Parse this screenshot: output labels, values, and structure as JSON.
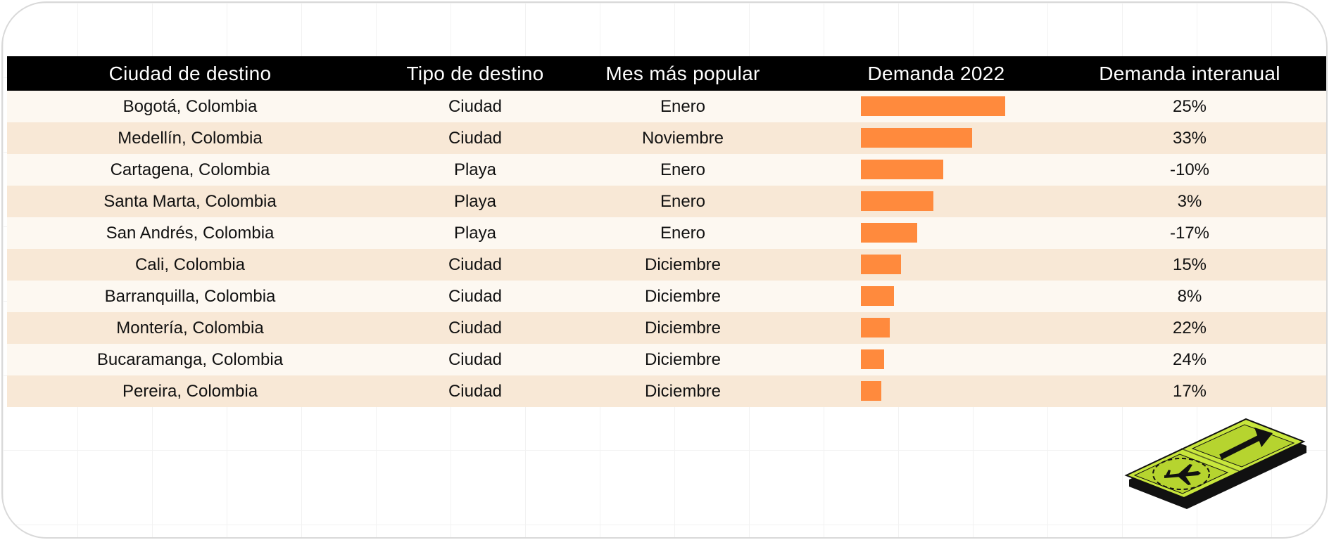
{
  "table": {
    "headers": {
      "city": "Ciudad de destino",
      "type": "Tipo de destino",
      "month": "Mes más popular",
      "demand": "Demanda 2022",
      "yoy": "Demanda interanual"
    },
    "rows": [
      {
        "city": "Bogotá, Colombia",
        "type": "Ciudad",
        "month": "Enero",
        "yoy": "25%"
      },
      {
        "city": "Medellín, Colombia",
        "type": "Ciudad",
        "month": "Noviembre",
        "yoy": "33%"
      },
      {
        "city": "Cartagena, Colombia",
        "type": "Playa",
        "month": "Enero",
        "yoy": "-10%"
      },
      {
        "city": "Santa Marta, Colombia",
        "type": "Playa",
        "month": "Enero",
        "yoy": "3%"
      },
      {
        "city": "San Andrés, Colombia",
        "type": "Playa",
        "month": "Enero",
        "yoy": "-17%"
      },
      {
        "city": "Cali, Colombia",
        "type": "Ciudad",
        "month": "Diciembre",
        "yoy": "15%"
      },
      {
        "city": "Barranquilla, Colombia",
        "type": "Ciudad",
        "month": "Diciembre",
        "yoy": "8%"
      },
      {
        "city": "Montería, Colombia",
        "type": "Ciudad",
        "month": "Diciembre",
        "yoy": "22%"
      },
      {
        "city": "Bucaramanga, Colombia",
        "type": "Ciudad",
        "month": "Diciembre",
        "yoy": "24%"
      },
      {
        "city": "Pereira, Colombia",
        "type": "Ciudad",
        "month": "Diciembre",
        "yoy": "17%"
      }
    ]
  },
  "chart_data": {
    "type": "bar",
    "orientation": "horizontal",
    "categories": [
      "Bogotá, Colombia",
      "Medellín, Colombia",
      "Cartagena, Colombia",
      "Santa Marta, Colombia",
      "San Andrés, Colombia",
      "Cali, Colombia",
      "Barranquilla, Colombia",
      "Montería, Colombia",
      "Bucaramanga, Colombia",
      "Pereira, Colombia"
    ],
    "values": [
      100,
      77,
      57,
      50,
      39,
      28,
      23,
      20,
      16,
      14
    ],
    "value_unit": "relative demand (Bogotá = 100)",
    "title": "Demanda 2022",
    "axis": "none",
    "grid": false,
    "legend": "none"
  },
  "colors": {
    "header_bg": "#000000",
    "header_text": "#ffffff",
    "row_light": "#fdf8f1",
    "row_dark": "#f8e8d6",
    "bar": "#ff8a3d",
    "sign_green": "#c8e63c",
    "sign_edge": "#111111"
  },
  "decoration": {
    "icon": "airport-sign-icon",
    "icons_on_sign": [
      "arrow-up-right-icon",
      "airplane-icon"
    ]
  }
}
